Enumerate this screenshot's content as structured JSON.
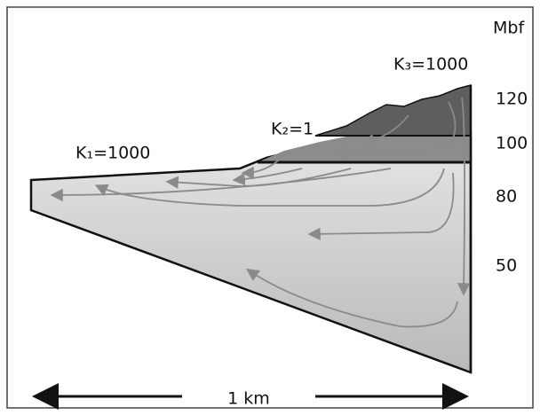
{
  "axis_unit": "Mbf",
  "zones": [
    {
      "label": "K₁=1000"
    },
    {
      "label": "K₂=1"
    },
    {
      "label": "K₃=1000"
    }
  ],
  "elevation_labels": [
    "120",
    "100",
    "80",
    "50"
  ],
  "scale_bar": "1 km"
}
